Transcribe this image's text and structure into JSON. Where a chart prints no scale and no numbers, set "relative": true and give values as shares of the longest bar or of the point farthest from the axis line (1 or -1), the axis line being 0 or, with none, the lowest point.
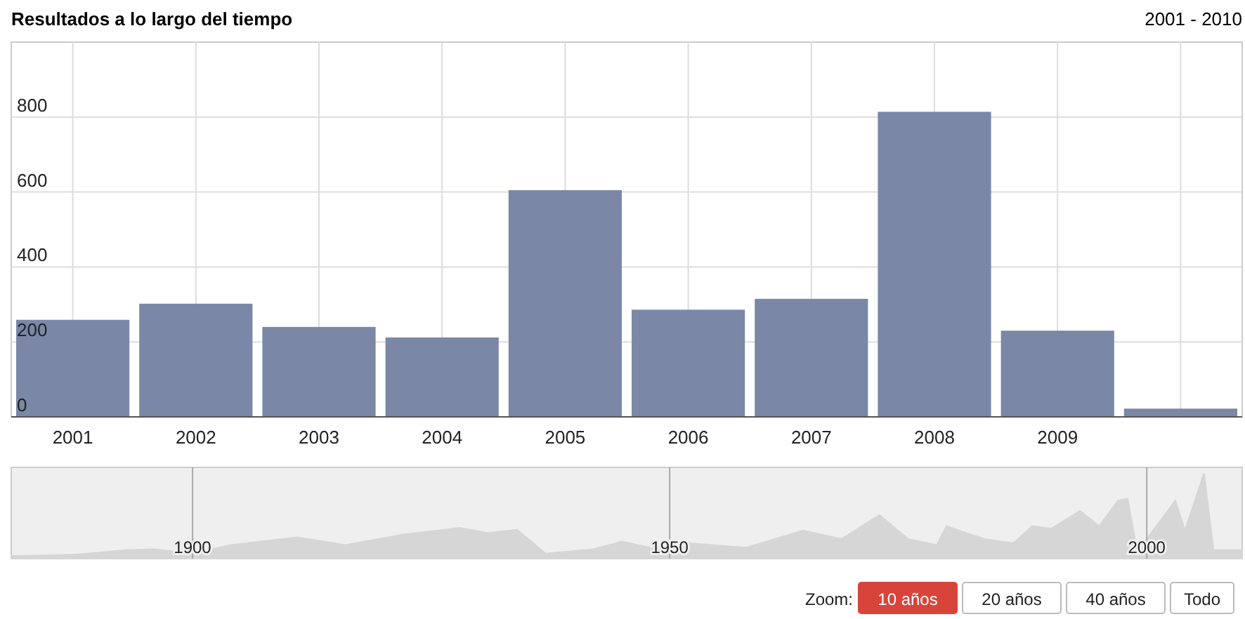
{
  "chart_data": [
    {
      "type": "bar",
      "title": "Resultados a lo largo del tiempo",
      "subtitle": "2001 - 2010",
      "categories": [
        "2001",
        "2002",
        "2003",
        "2004",
        "2005",
        "2006",
        "2007",
        "2008",
        "2009",
        null
      ],
      "values": [
        259,
        302,
        240,
        212,
        605,
        286,
        315,
        814,
        230,
        22
      ],
      "color": "#7b87a6",
      "ylim": [
        0,
        1000
      ],
      "yticks": [
        0,
        200,
        400,
        600,
        800
      ],
      "grid": true
    },
    {
      "type": "area",
      "relative": true,
      "color": "#d6d6d6",
      "x": [
        1881,
        1888,
        1893,
        1896,
        1900,
        1904,
        1911,
        1916,
        1922,
        1928,
        1931,
        1934,
        1937,
        1942,
        1945,
        1948,
        1952,
        1958,
        1964,
        1968,
        1972,
        1975,
        1978,
        1979,
        1983,
        1986,
        1988,
        1990,
        1993,
        1995,
        1997,
        1998,
        1999,
        2003,
        2004,
        2006,
        2007,
        2010
      ],
      "values": [
        0.03,
        0.05,
        0.1,
        0.11,
        0.06,
        0.16,
        0.25,
        0.16,
        0.28,
        0.36,
        0.3,
        0.34,
        0.06,
        0.11,
        0.2,
        0.13,
        0.18,
        0.13,
        0.33,
        0.23,
        0.51,
        0.23,
        0.16,
        0.38,
        0.23,
        0.18,
        0.38,
        0.35,
        0.56,
        0.38,
        0.68,
        0.7,
        0.08,
        0.68,
        0.33,
        1.0,
        0.1,
        0.1
      ],
      "xlim": [
        1881,
        2010
      ],
      "xticks": [
        1900,
        1950,
        2000
      ],
      "grid": "x",
      "annotations": [
        "Zoom:",
        "10 años",
        "20 años",
        "40 años",
        "Todo"
      ]
    }
  ]
}
